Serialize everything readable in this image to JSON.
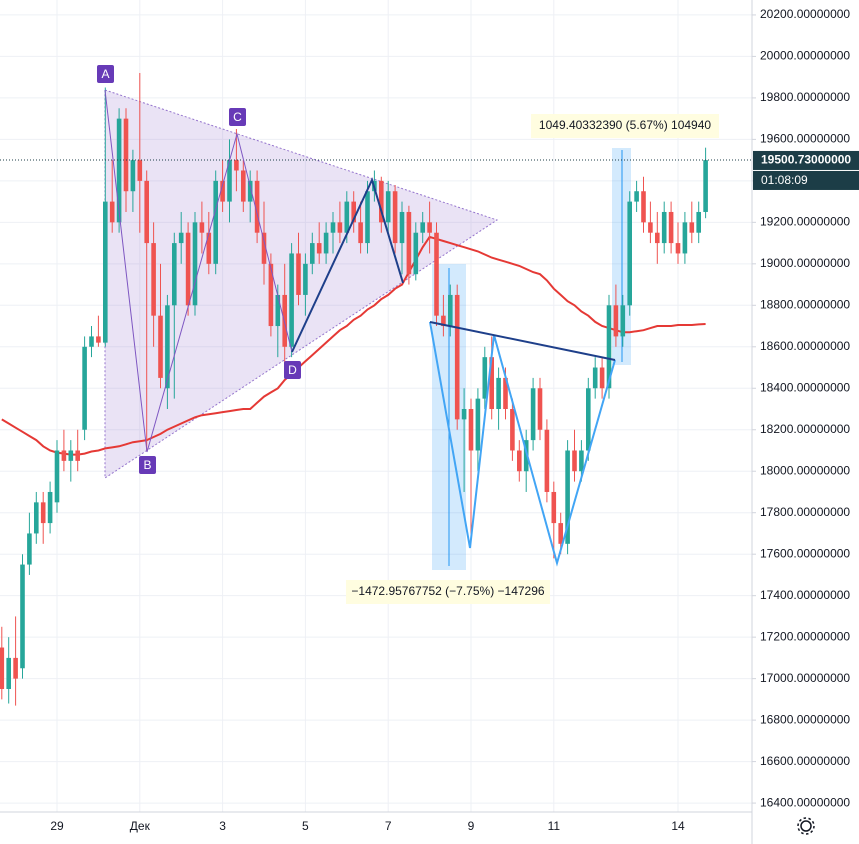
{
  "chart_data": {
    "type": "candlestick",
    "categories": [
      null,
      null,
      null,
      null,
      null,
      null,
      null,
      null,
      "29",
      null,
      null,
      null,
      null,
      null,
      null,
      null,
      null,
      null,
      null,
      null,
      "Дек",
      null,
      null,
      null,
      null,
      null,
      null,
      null,
      null,
      null,
      null,
      null,
      "3",
      null,
      null,
      null,
      null,
      null,
      null,
      null,
      null,
      null,
      null,
      null,
      "5",
      null,
      null,
      null,
      null,
      null,
      null,
      null,
      null,
      null,
      null,
      null,
      "7",
      null,
      null,
      null,
      null,
      null,
      null,
      null,
      null,
      null,
      null,
      null,
      "9",
      null,
      null,
      null,
      null,
      null,
      null,
      null,
      null,
      null,
      null,
      null,
      "11",
      null,
      null,
      null,
      null,
      null,
      null,
      null,
      null,
      null,
      null,
      null,
      null,
      null,
      null,
      null,
      null,
      null,
      "14",
      null,
      null,
      null,
      null
    ],
    "candles": [
      [
        17150,
        17250,
        16900,
        16950
      ],
      [
        16950,
        17200,
        16880,
        17100
      ],
      [
        17100,
        17300,
        16870,
        17000
      ],
      [
        17050,
        17600,
        17000,
        17550
      ],
      [
        17550,
        17800,
        17500,
        17700
      ],
      [
        17700,
        17900,
        17650,
        17850
      ],
      [
        17850,
        17900,
        17650,
        17750
      ],
      [
        17750,
        17950,
        17700,
        17900
      ],
      [
        17850,
        18150,
        17800,
        18100
      ],
      [
        18100,
        18200,
        18000,
        18050
      ],
      [
        18050,
        18150,
        17950,
        18100
      ],
      [
        18100,
        18200,
        18000,
        18050
      ],
      [
        18200,
        18650,
        18150,
        18600
      ],
      [
        18600,
        18700,
        18550,
        18650
      ],
      [
        18650,
        18750,
        18600,
        18620
      ],
      [
        18620,
        19850,
        18600,
        19300
      ],
      [
        19300,
        19500,
        19150,
        19200
      ],
      [
        19200,
        19750,
        19150,
        19700
      ],
      [
        19700,
        19750,
        19250,
        19350
      ],
      [
        19350,
        19550,
        19250,
        19500
      ],
      [
        19500,
        19920,
        19150,
        19400
      ],
      [
        19400,
        19450,
        18100,
        19100
      ],
      [
        19100,
        19200,
        18600,
        18750
      ],
      [
        18750,
        19000,
        18400,
        18450
      ],
      [
        18400,
        18850,
        18300,
        18800
      ],
      [
        18800,
        19150,
        18350,
        19100
      ],
      [
        19100,
        19250,
        19000,
        19150
      ],
      [
        19150,
        19200,
        18750,
        18800
      ],
      [
        18800,
        19250,
        18750,
        19200
      ],
      [
        19200,
        19300,
        19050,
        19150
      ],
      [
        19150,
        19250,
        18950,
        19000
      ],
      [
        19000,
        19450,
        18950,
        19400
      ],
      [
        19400,
        19500,
        19250,
        19300
      ],
      [
        19300,
        19600,
        19200,
        19500
      ],
      [
        19500,
        19650,
        19350,
        19450
      ],
      [
        19450,
        19500,
        19250,
        19300
      ],
      [
        19300,
        19450,
        19200,
        19400
      ],
      [
        19400,
        19450,
        19100,
        19150
      ],
      [
        19150,
        19300,
        18900,
        19000
      ],
      [
        19000,
        19050,
        18650,
        18700
      ],
      [
        18700,
        18900,
        18550,
        18850
      ],
      [
        18850,
        19000,
        18500,
        18600
      ],
      [
        18600,
        19100,
        18550,
        19050
      ],
      [
        19050,
        19150,
        18800,
        18850
      ],
      [
        18850,
        19050,
        18750,
        19000
      ],
      [
        19000,
        19150,
        18950,
        19100
      ],
      [
        19100,
        19200,
        19000,
        19050
      ],
      [
        19050,
        19200,
        19000,
        19150
      ],
      [
        19150,
        19250,
        19050,
        19200
      ],
      [
        19200,
        19300,
        19100,
        19150
      ],
      [
        19150,
        19350,
        19100,
        19300
      ],
      [
        19300,
        19350,
        19150,
        19200
      ],
      [
        19200,
        19300,
        19050,
        19100
      ],
      [
        19100,
        19400,
        19050,
        19350
      ],
      [
        19350,
        19450,
        19300,
        19400
      ],
      [
        19400,
        19420,
        19150,
        19200
      ],
      [
        19200,
        19400,
        19150,
        19350
      ],
      [
        19350,
        19380,
        19050,
        19100
      ],
      [
        19100,
        19300,
        18950,
        19250
      ],
      [
        19250,
        19280,
        18900,
        18950
      ],
      [
        18950,
        19200,
        18920,
        19150
      ],
      [
        19150,
        19250,
        19100,
        19200
      ],
      [
        19200,
        19300,
        19050,
        19150
      ],
      [
        19150,
        19200,
        18700,
        18750
      ],
      [
        18750,
        18850,
        18650,
        18700
      ],
      [
        18700,
        18900,
        18650,
        18850
      ],
      [
        18850,
        18900,
        18200,
        18250
      ],
      [
        18250,
        18400,
        17900,
        18300
      ],
      [
        18300,
        18350,
        17650,
        18100
      ],
      [
        18100,
        18400,
        18000,
        18350
      ],
      [
        18350,
        18600,
        18300,
        18550
      ],
      [
        18550,
        18650,
        18250,
        18300
      ],
      [
        18300,
        18500,
        18200,
        18450
      ],
      [
        18450,
        18500,
        18250,
        18300
      ],
      [
        18300,
        18350,
        18050,
        18100
      ],
      [
        18100,
        18150,
        17950,
        18000
      ],
      [
        18000,
        18200,
        17900,
        18150
      ],
      [
        18150,
        18450,
        18100,
        18400
      ],
      [
        18400,
        18450,
        18150,
        18200
      ],
      [
        18200,
        18250,
        17850,
        17900
      ],
      [
        17900,
        17950,
        17580,
        17750
      ],
      [
        17750,
        17800,
        17600,
        17650
      ],
      [
        17650,
        18150,
        17600,
        18100
      ],
      [
        18100,
        18200,
        17950,
        18000
      ],
      [
        18000,
        18150,
        17950,
        18100
      ],
      [
        18100,
        18450,
        18050,
        18400
      ],
      [
        18400,
        18550,
        18350,
        18500
      ],
      [
        18500,
        18550,
        18350,
        18400
      ],
      [
        18400,
        18850,
        18350,
        18800
      ],
      [
        18800,
        18900,
        18600,
        18650
      ],
      [
        18650,
        18850,
        18600,
        18800
      ],
      [
        18800,
        19350,
        18750,
        19300
      ],
      [
        19300,
        19400,
        19250,
        19350
      ],
      [
        19350,
        19420,
        19150,
        19200
      ],
      [
        19200,
        19300,
        19100,
        19150
      ],
      [
        19150,
        19250,
        19000,
        19100
      ],
      [
        19100,
        19300,
        19050,
        19250
      ],
      [
        19250,
        19300,
        19050,
        19100
      ],
      [
        19100,
        19200,
        19000,
        19050
      ],
      [
        19050,
        19250,
        19000,
        19200
      ],
      [
        19200,
        19300,
        19100,
        19150
      ],
      [
        19150,
        19300,
        19100,
        19250
      ],
      [
        19250,
        19560,
        19220,
        19500
      ]
    ],
    "up_color": "#26a69a",
    "down_color": "#ef5350",
    "ma": {
      "color": "#e53935",
      "values": [
        18250,
        18230,
        18210,
        18190,
        18170,
        18150,
        18120,
        18100,
        18090,
        18085,
        18080,
        18080,
        18085,
        18095,
        18100,
        18110,
        18115,
        18120,
        18130,
        18140,
        18145,
        18150,
        18165,
        18180,
        18200,
        18215,
        18230,
        18245,
        18260,
        18270,
        18275,
        18280,
        18285,
        18290,
        18295,
        18300,
        18300,
        18330,
        18360,
        18380,
        18400,
        18440,
        18470,
        18500,
        18530,
        18560,
        18590,
        18620,
        18650,
        18680,
        18700,
        18730,
        18750,
        18780,
        18800,
        18830,
        18850,
        18880,
        18900,
        18960,
        19020,
        19080,
        19130,
        19120,
        19110,
        19100,
        19090,
        19080,
        19070,
        19060,
        19045,
        19030,
        19020,
        19010,
        19000,
        18990,
        18975,
        18960,
        18950,
        18920,
        18880,
        18850,
        18820,
        18800,
        18770,
        18750,
        18720,
        18700,
        18690,
        18680,
        18670,
        18670,
        18675,
        18680,
        18690,
        18700,
        18700,
        18700,
        18705,
        18705,
        18705,
        18708,
        18710
      ]
    },
    "ylim": [
      16357,
      20272
    ],
    "yticks": [
      {
        "value": 16400,
        "label": "16400.00000000"
      },
      {
        "value": 16600,
        "label": "16600.00000000"
      },
      {
        "value": 16800,
        "label": "16800.00000000"
      },
      {
        "value": 17000,
        "label": "17000.00000000"
      },
      {
        "value": 17200,
        "label": "17200.00000000"
      },
      {
        "value": 17400,
        "label": "17400.00000000"
      },
      {
        "value": 17600,
        "label": "17600.00000000"
      },
      {
        "value": 17800,
        "label": "17800.00000000"
      },
      {
        "value": 18000,
        "label": "18000.00000000"
      },
      {
        "value": 18200,
        "label": "18200.00000000"
      },
      {
        "value": 18400,
        "label": "18400.00000000"
      },
      {
        "value": 18600,
        "label": "18600.00000000"
      },
      {
        "value": 18800,
        "label": "18800.00000000"
      },
      {
        "value": 19000,
        "label": "19000.00000000"
      },
      {
        "value": 19200,
        "label": "19200.00000000"
      },
      {
        "value": 19400,
        "label": "19400.00000000"
      },
      {
        "value": 19600,
        "label": "19600.00000000"
      },
      {
        "value": 19800,
        "label": "19800.00000000"
      },
      {
        "value": 20000,
        "label": "20000.00000000"
      },
      {
        "value": 20200,
        "label": "20200.00000000"
      }
    ],
    "grid": true,
    "last_price": {
      "value": 19500.73,
      "label": "19500.73000000",
      "color": "#1c3d47"
    },
    "countdown": "01:08:09",
    "annotations": {
      "points": [
        "A",
        "B",
        "C",
        "D"
      ],
      "measures": [
        "1049.40332390 (5.67%) 104940",
        "−1472.95767752 (−7.75%) −147296"
      ]
    }
  }
}
